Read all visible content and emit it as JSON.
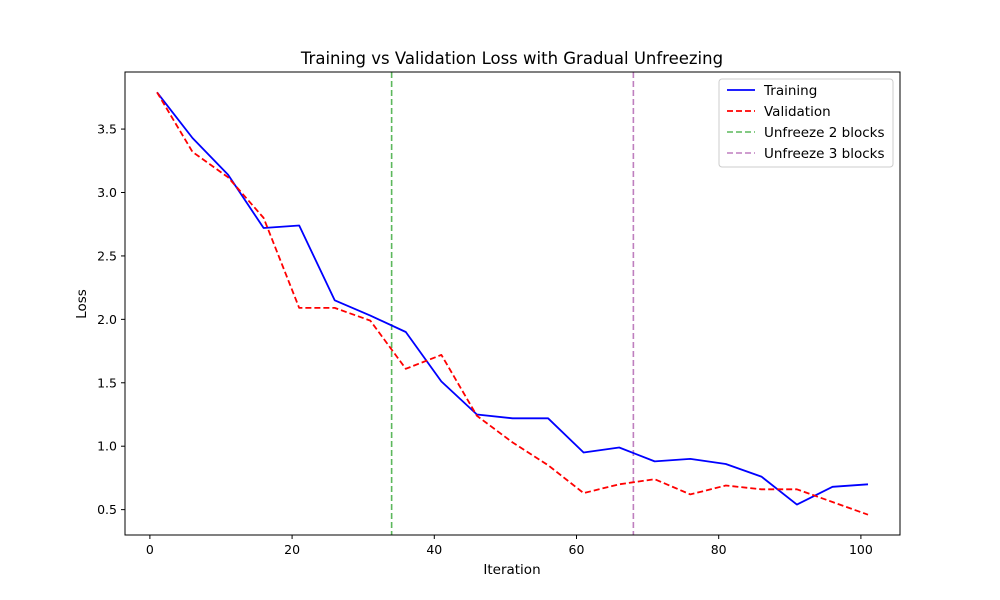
{
  "chart_data": {
    "type": "line",
    "title": "Training vs Validation Loss with Gradual Unfreezing",
    "xlabel": "Iteration",
    "ylabel": "Loss",
    "xlim": [
      -3.5,
      105.5
    ],
    "ylim": [
      0.3,
      3.95
    ],
    "xticks": [
      0,
      20,
      40,
      60,
      80,
      100
    ],
    "yticks": [
      0.5,
      1.0,
      1.5,
      2.0,
      2.5,
      3.0,
      3.5
    ],
    "ytick_labels": [
      "0.5",
      "1.0",
      "1.5",
      "2.0",
      "2.5",
      "3.0",
      "3.5"
    ],
    "grid": false,
    "legend_position": "top-right",
    "x": [
      1,
      6,
      11,
      16,
      21,
      26,
      31,
      36,
      41,
      46,
      51,
      56,
      61,
      66,
      71,
      76,
      81,
      86,
      91,
      96,
      101
    ],
    "series": [
      {
        "name": "Training",
        "color": "#0000ff",
        "style": "solid",
        "values": [
          3.79,
          3.43,
          3.14,
          2.72,
          2.74,
          2.15,
          2.03,
          1.9,
          1.51,
          1.25,
          1.22,
          1.22,
          0.95,
          0.99,
          0.88,
          0.9,
          0.86,
          0.76,
          0.54,
          0.68,
          0.7
        ]
      },
      {
        "name": "Validation",
        "color": "#ff0000",
        "style": "dashed",
        "values": [
          3.79,
          3.32,
          3.12,
          2.8,
          2.09,
          2.09,
          1.99,
          1.61,
          1.72,
          1.24,
          1.03,
          0.85,
          0.63,
          0.7,
          0.74,
          0.62,
          0.69,
          0.66,
          0.66,
          0.56,
          0.46
        ]
      }
    ],
    "vlines": [
      {
        "name": "Unfreeze 2 blocks",
        "x": 34,
        "color": "#5cb85c"
      },
      {
        "name": "Unfreeze 3 blocks",
        "x": 68,
        "color": "#bf7fbf"
      }
    ]
  }
}
